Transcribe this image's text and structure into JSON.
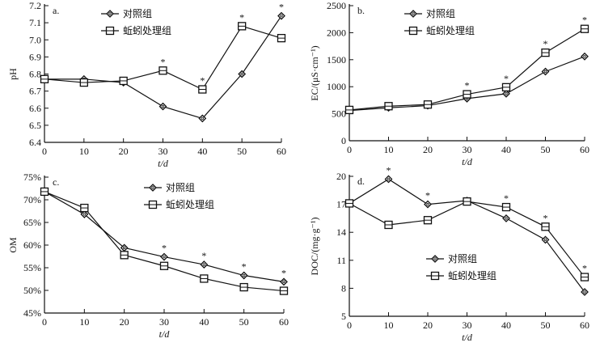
{
  "chart_data": [
    {
      "type": "line",
      "panel_label": "a.",
      "x": [
        0,
        10,
        20,
        30,
        40,
        50,
        60
      ],
      "xlim": [
        0,
        60
      ],
      "xticks": [
        0,
        10,
        20,
        30,
        40,
        50,
        60
      ],
      "xlabel": "t/d",
      "ylabel": "pH",
      "ylim": [
        6.4,
        7.2
      ],
      "yticks": [
        "6.4",
        "6.5",
        "6.6",
        "6.7",
        "6.8",
        "6.9",
        "7.0",
        "7.1",
        "7.2"
      ],
      "legend_position": "top-center",
      "series": [
        {
          "name": "对照组",
          "marker": "diamond",
          "values": [
            6.77,
            6.77,
            6.75,
            6.61,
            6.54,
            6.8,
            7.14
          ]
        },
        {
          "name": "蚯蚓处理组",
          "marker": "square",
          "values": [
            6.77,
            6.75,
            6.76,
            6.82,
            6.71,
            7.08,
            7.01
          ]
        }
      ],
      "significance_marker": "*",
      "significant_x": [
        30,
        40,
        50,
        60
      ]
    },
    {
      "type": "line",
      "panel_label": "b.",
      "x": [
        0,
        10,
        20,
        30,
        40,
        50,
        60
      ],
      "xlim": [
        0,
        60
      ],
      "xticks": [
        0,
        10,
        20,
        30,
        40,
        50,
        60
      ],
      "xlabel": "t/d",
      "ylabel": "EC/(μS·cm⁻¹)",
      "ylim": [
        0,
        2500
      ],
      "yticks": [
        "0",
        "500",
        "1000",
        "1500",
        "2000",
        "2500"
      ],
      "legend_position": "top-left",
      "series": [
        {
          "name": "对照组",
          "marker": "diamond",
          "values": [
            560,
            610,
            650,
            780,
            870,
            1280,
            1560
          ]
        },
        {
          "name": "蚯蚓处理组",
          "marker": "square",
          "values": [
            570,
            640,
            670,
            860,
            990,
            1630,
            2070
          ]
        }
      ],
      "significance_marker": "*",
      "significant_x": [
        30,
        40,
        50,
        60
      ]
    },
    {
      "type": "line",
      "panel_label": "c.",
      "x": [
        0,
        10,
        20,
        30,
        40,
        50,
        60
      ],
      "xlim": [
        0,
        60
      ],
      "xticks": [
        0,
        10,
        20,
        30,
        40,
        50,
        60
      ],
      "xlabel": "t/d",
      "ylabel": "OM",
      "ylim": [
        45,
        75
      ],
      "yticks": [
        "45%",
        "50%",
        "55%",
        "60%",
        "65%",
        "70%",
        "75%"
      ],
      "legend_position": "top-right",
      "series": [
        {
          "name": "对照组",
          "marker": "diamond",
          "values": [
            71.8,
            66.8,
            59.4,
            57.4,
            55.7,
            53.3,
            51.9
          ]
        },
        {
          "name": "蚯蚓处理组",
          "marker": "square",
          "values": [
            71.8,
            68.2,
            57.8,
            55.4,
            52.6,
            50.7,
            49.9
          ]
        }
      ],
      "significance_marker": "*",
      "significant_x": [
        30,
        40,
        50,
        60
      ]
    },
    {
      "type": "line",
      "panel_label": "d.",
      "x": [
        0,
        10,
        20,
        30,
        40,
        50,
        60
      ],
      "xlim": [
        0,
        60
      ],
      "xticks": [
        0,
        10,
        20,
        30,
        40,
        50,
        60
      ],
      "xlabel": "t/d",
      "ylabel": "DOC/(mg·g⁻¹)",
      "ylim": [
        5,
        20.5
      ],
      "yticks": [
        "5",
        "8",
        "11",
        "14",
        "17",
        "20"
      ],
      "legend_position": "center-left",
      "series": [
        {
          "name": "对照组",
          "marker": "diamond",
          "values": [
            17.1,
            19.7,
            17.0,
            17.4,
            15.5,
            13.2,
            7.6
          ]
        },
        {
          "name": "蚯蚓处理组",
          "marker": "square",
          "values": [
            17.1,
            14.8,
            15.3,
            17.3,
            16.7,
            14.6,
            9.2
          ]
        }
      ],
      "significance_marker": "*",
      "significant_x": [
        10,
        20,
        40,
        50,
        60
      ]
    }
  ]
}
